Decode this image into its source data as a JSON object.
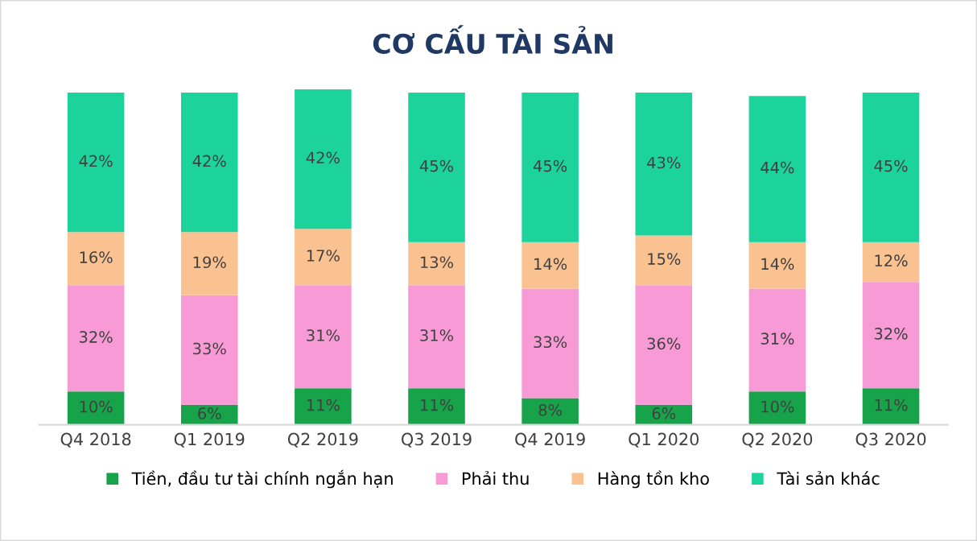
{
  "chart_data": {
    "type": "bar",
    "title": "CƠ CẤU TÀI SẢN",
    "stacked": true,
    "legend": "bottom",
    "grid": false,
    "categories": [
      "Q4 2018",
      "Q1 2019",
      "Q2 2019",
      "Q3 2019",
      "Q4 2019",
      "Q1 2020",
      "Q2 2020",
      "Q3 2020"
    ],
    "series": [
      {
        "name": "Tiền, đầu tư tài chính ngắn hạn",
        "color": "#17a34a",
        "values": [
          10,
          6,
          11,
          11,
          8,
          6,
          10,
          11
        ],
        "value_labels": [
          "10%",
          "6%",
          "11%",
          "11%",
          "8%",
          "6%",
          "10%",
          "11%"
        ]
      },
      {
        "name": "Phải thu",
        "color": "#f79ad6",
        "values": [
          32,
          33,
          31,
          31,
          33,
          36,
          31,
          32
        ],
        "value_labels": [
          "32%",
          "33%",
          "31%",
          "31%",
          "33%",
          "36%",
          "31%",
          "32%"
        ]
      },
      {
        "name": "Hàng tồn kho",
        "color": "#fac291",
        "values": [
          16,
          19,
          17,
          13,
          14,
          15,
          14,
          12
        ],
        "value_labels": [
          "16%",
          "19%",
          "17%",
          "13%",
          "14%",
          "15%",
          "14%",
          "12%"
        ]
      },
      {
        "name": "Tài sản khác",
        "color": "#1dd39c",
        "values": [
          42,
          42,
          42,
          45,
          45,
          43,
          44,
          45
        ],
        "value_labels": [
          "42%",
          "42%",
          "42%",
          "45%",
          "45%",
          "43%",
          "44%",
          "45%"
        ]
      }
    ]
  }
}
